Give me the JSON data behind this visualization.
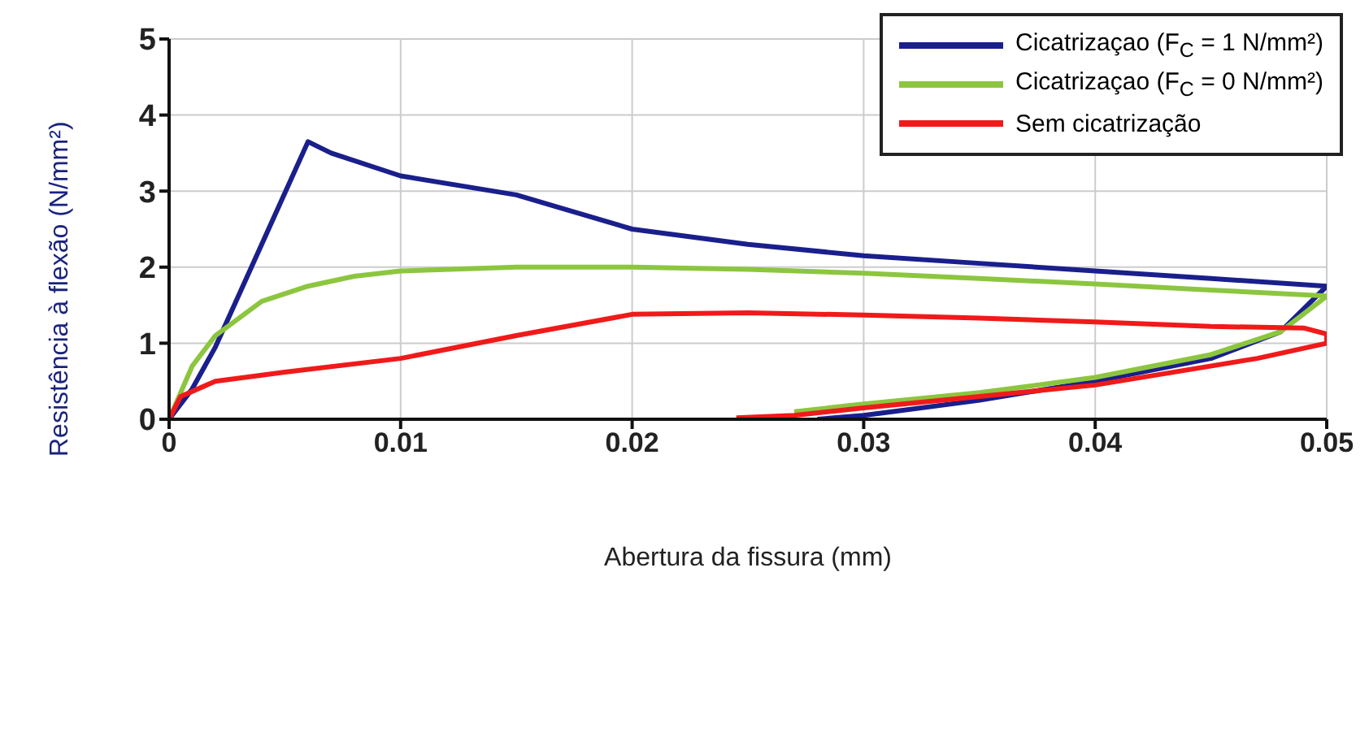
{
  "chart_data": {
    "type": "line",
    "xlabel": "Abertura da fissura (mm)",
    "ylabel": "Resistência à flexão (N/mm²)",
    "xlim": [
      0,
      0.05
    ],
    "ylim": [
      0,
      5
    ],
    "xticks": [
      0,
      0.01,
      0.02,
      0.03,
      0.04,
      0.05
    ],
    "yticks": [
      0,
      1,
      2,
      3,
      4,
      5
    ],
    "grid": true,
    "legend": "top right",
    "marker": "none",
    "line_style": "solid",
    "series": [
      {
        "name": "Cicatrizaçao (F$_{C}$ = 1 N/mm²)",
        "color": "#1a1f8c",
        "x": [
          0,
          0.001,
          0.002,
          0.004,
          0.006,
          0.007,
          0.01,
          0.015,
          0.02,
          0.025,
          0.03,
          0.035,
          0.04,
          0.045,
          0.05,
          0.048,
          0.045,
          0.04,
          0.035,
          0.03,
          0.028
        ],
        "values": [
          0,
          0.4,
          0.95,
          2.3,
          3.65,
          3.5,
          3.2,
          2.95,
          2.5,
          2.3,
          2.15,
          2.05,
          1.95,
          1.85,
          1.75,
          1.15,
          0.8,
          0.5,
          0.25,
          0.05,
          0
        ]
      },
      {
        "name": "Cicatrizaçao (F$_{C}$ = 0 N/mm²)",
        "color": "#8cc63f",
        "x": [
          0,
          0.001,
          0.002,
          0.004,
          0.006,
          0.008,
          0.01,
          0.015,
          0.02,
          0.025,
          0.03,
          0.035,
          0.04,
          0.045,
          0.05,
          0.048,
          0.045,
          0.04,
          0.035,
          0.03,
          0.027
        ],
        "values": [
          0,
          0.7,
          1.1,
          1.55,
          1.75,
          1.88,
          1.95,
          2.0,
          2.0,
          1.97,
          1.92,
          1.85,
          1.78,
          1.7,
          1.62,
          1.15,
          0.85,
          0.55,
          0.35,
          0.2,
          0.1
        ]
      },
      {
        "name": "Sem cicatrização",
        "color": "#f01a1a",
        "x": [
          0,
          0.0005,
          0.002,
          0.005,
          0.01,
          0.015,
          0.02,
          0.025,
          0.03,
          0.035,
          0.04,
          0.045,
          0.049,
          0.05,
          0.05,
          0.047,
          0.04,
          0.035,
          0.03,
          0.027,
          0.0245
        ],
        "values": [
          0,
          0.3,
          0.5,
          0.62,
          0.8,
          1.1,
          1.38,
          1.4,
          1.37,
          1.33,
          1.28,
          1.22,
          1.2,
          1.12,
          1.0,
          0.8,
          0.45,
          0.3,
          0.15,
          0.05,
          0.02
        ]
      }
    ]
  }
}
